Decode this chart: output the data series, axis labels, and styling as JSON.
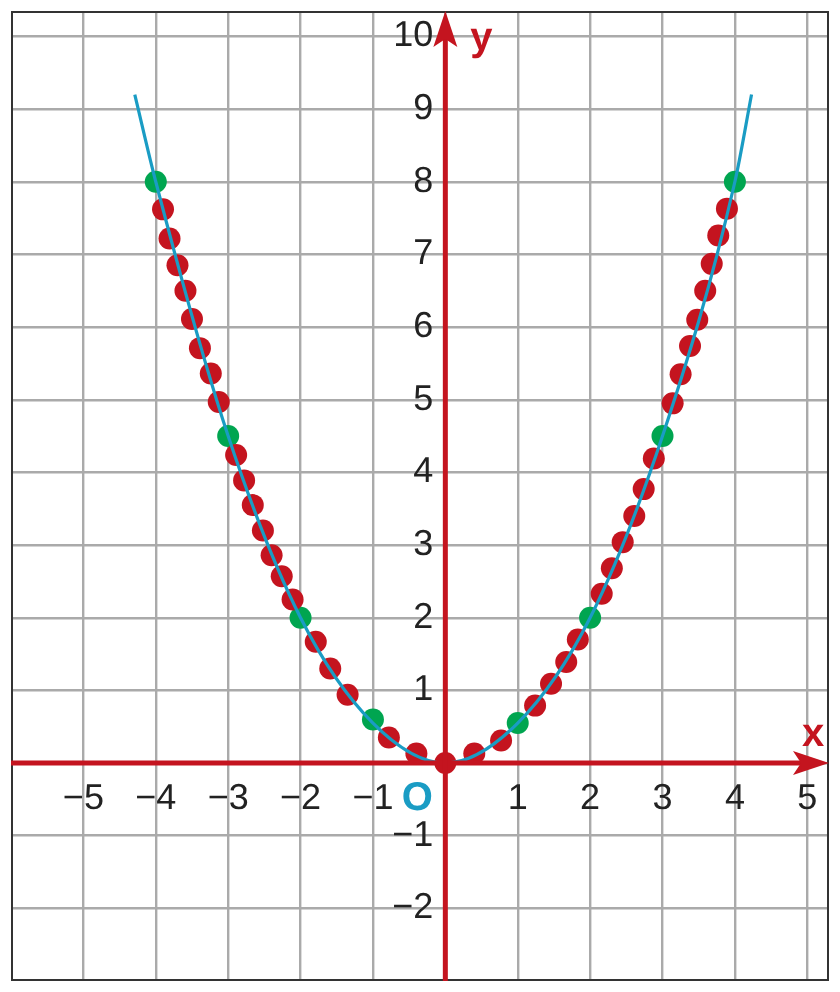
{
  "chart_data": {
    "type": "scatter",
    "xlabel": "x",
    "ylabel": "y",
    "xlim": [
      -6,
      5.3
    ],
    "ylim": [
      -3,
      10.35
    ],
    "xticks": [
      -5,
      -4,
      -3,
      -2,
      -1,
      {
        "value": 0,
        "label": null
      },
      1,
      2,
      3,
      4,
      5
    ],
    "annotations": [
      {
        "text": "O",
        "x": 0,
        "y": 0
      }
    ],
    "yticks": [
      -2,
      -1,
      {
        "value": 0,
        "label": null
      },
      1,
      2,
      3,
      4,
      5,
      6,
      7,
      8,
      9,
      10
    ],
    "grid": true,
    "legend": false,
    "marker": "circle",
    "series": [
      {
        "type": "line",
        "color": "#1a9cc4",
        "marker": "none",
        "x": [
          -4.29,
          -4,
          -3,
          -2,
          -1,
          0,
          1,
          2,
          3,
          4,
          4.23
        ],
        "values": [
          9.2,
          8,
          4.5,
          2,
          0.55,
          0,
          0.55,
          2,
          4.5,
          8,
          9.2
        ]
      },
      {
        "color": "#c4141f",
        "x": [
          -3.9,
          -3.81,
          -3.7,
          -3.59,
          -3.5,
          -3.39,
          -3.24,
          -3.13,
          -2.89,
          -2.78,
          -2.66,
          -2.52,
          -2.4,
          -2.26,
          -2.11,
          -1.79,
          -1.59,
          -1.35,
          -0.78,
          -0.4,
          0,
          0.4,
          0.77,
          1.24,
          1.46,
          1.67,
          1.83,
          2.16,
          2.3,
          2.45,
          2.61,
          2.74,
          2.88,
          3.14,
          3.25,
          3.38,
          3.48,
          3.59,
          3.68,
          3.77,
          3.89
        ],
        "values": [
          7.62,
          7.22,
          6.85,
          6.5,
          6.11,
          5.71,
          5.36,
          4.97,
          4.24,
          3.89,
          3.55,
          3.2,
          2.86,
          2.57,
          2.25,
          1.67,
          1.3,
          0.94,
          0.35,
          0.13,
          0,
          0.13,
          0.31,
          0.79,
          1.09,
          1.39,
          1.7,
          2.33,
          2.68,
          3.04,
          3.4,
          3.77,
          4.19,
          4.95,
          5.35,
          5.74,
          6.1,
          6.5,
          6.87,
          7.26,
          7.63
        ]
      },
      {
        "color": "#00a550",
        "x": [
          -4,
          -3,
          -2,
          -1,
          1,
          2,
          3,
          4
        ],
        "values": [
          8,
          4.5,
          2,
          0.6,
          0.55,
          2,
          4.5,
          8
        ]
      }
    ]
  }
}
